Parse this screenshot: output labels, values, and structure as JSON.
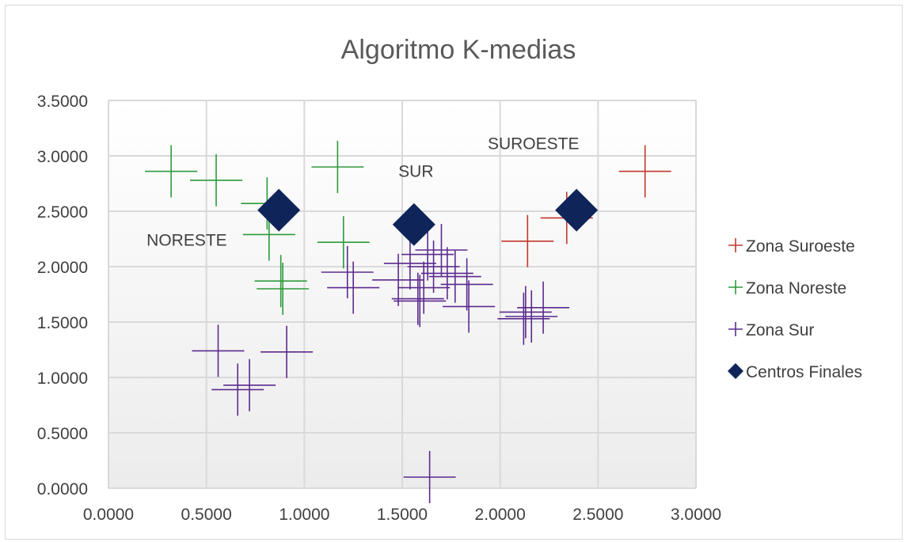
{
  "chart_data": {
    "type": "scatter",
    "title": "Algoritmo  K-medias",
    "xlabel": "",
    "ylabel": "",
    "xlim": [
      0,
      3
    ],
    "ylim": [
      0,
      3.5
    ],
    "x_ticks": [
      "0.0000",
      "0.5000",
      "1.0000",
      "1.5000",
      "2.0000",
      "2.5000",
      "3.0000"
    ],
    "y_ticks": [
      "0.0000",
      "0.5000",
      "1.0000",
      "1.5000",
      "2.0000",
      "2.5000",
      "3.0000",
      "3.5000"
    ],
    "grid": true,
    "legend_position": "right",
    "annotations": [
      {
        "text": "NORESTE",
        "x": 0.4,
        "y": 2.19
      },
      {
        "text": "SUR",
        "x": 1.57,
        "y": 2.81
      },
      {
        "text": "SUROESTE",
        "x": 2.17,
        "y": 3.06
      }
    ],
    "series": [
      {
        "name": "Zona Suroeste",
        "marker": "plus",
        "color": "#c0392b",
        "points": [
          [
            2.74,
            2.86
          ],
          [
            2.34,
            2.44
          ],
          [
            2.14,
            2.23
          ]
        ]
      },
      {
        "name": "Zona Noreste",
        "marker": "plus",
        "color": "#2e9a3c",
        "points": [
          [
            0.32,
            2.86
          ],
          [
            0.55,
            2.78
          ],
          [
            1.17,
            2.9
          ],
          [
            0.81,
            2.57
          ],
          [
            0.82,
            2.29
          ],
          [
            1.2,
            2.22
          ],
          [
            0.88,
            1.87
          ],
          [
            0.89,
            1.8
          ]
        ]
      },
      {
        "name": "Zona Sur",
        "marker": "plus",
        "color": "#5b2a8e",
        "points": [
          [
            0.56,
            1.24
          ],
          [
            0.91,
            1.23
          ],
          [
            0.66,
            0.89
          ],
          [
            0.72,
            0.93
          ],
          [
            1.64,
            0.1
          ],
          [
            1.22,
            1.95
          ],
          [
            1.25,
            1.81
          ],
          [
            1.48,
            1.88
          ],
          [
            1.54,
            2.03
          ],
          [
            1.59,
            1.69
          ],
          [
            1.58,
            1.71
          ],
          [
            1.63,
            2.11
          ],
          [
            1.66,
            2.0
          ],
          [
            1.7,
            2.15
          ],
          [
            1.73,
            1.94
          ],
          [
            1.77,
            1.91
          ],
          [
            1.83,
            1.84
          ],
          [
            1.84,
            1.64
          ],
          [
            2.12,
            1.53
          ],
          [
            2.16,
            1.55
          ],
          [
            2.22,
            1.63
          ],
          [
            2.13,
            1.59
          ],
          [
            1.61,
            1.81
          ]
        ]
      },
      {
        "name": "Centros Finales",
        "marker": "diamond",
        "color": "#0f2459",
        "points": [
          [
            0.87,
            2.51
          ],
          [
            1.56,
            2.38
          ],
          [
            2.39,
            2.51
          ]
        ]
      }
    ]
  }
}
